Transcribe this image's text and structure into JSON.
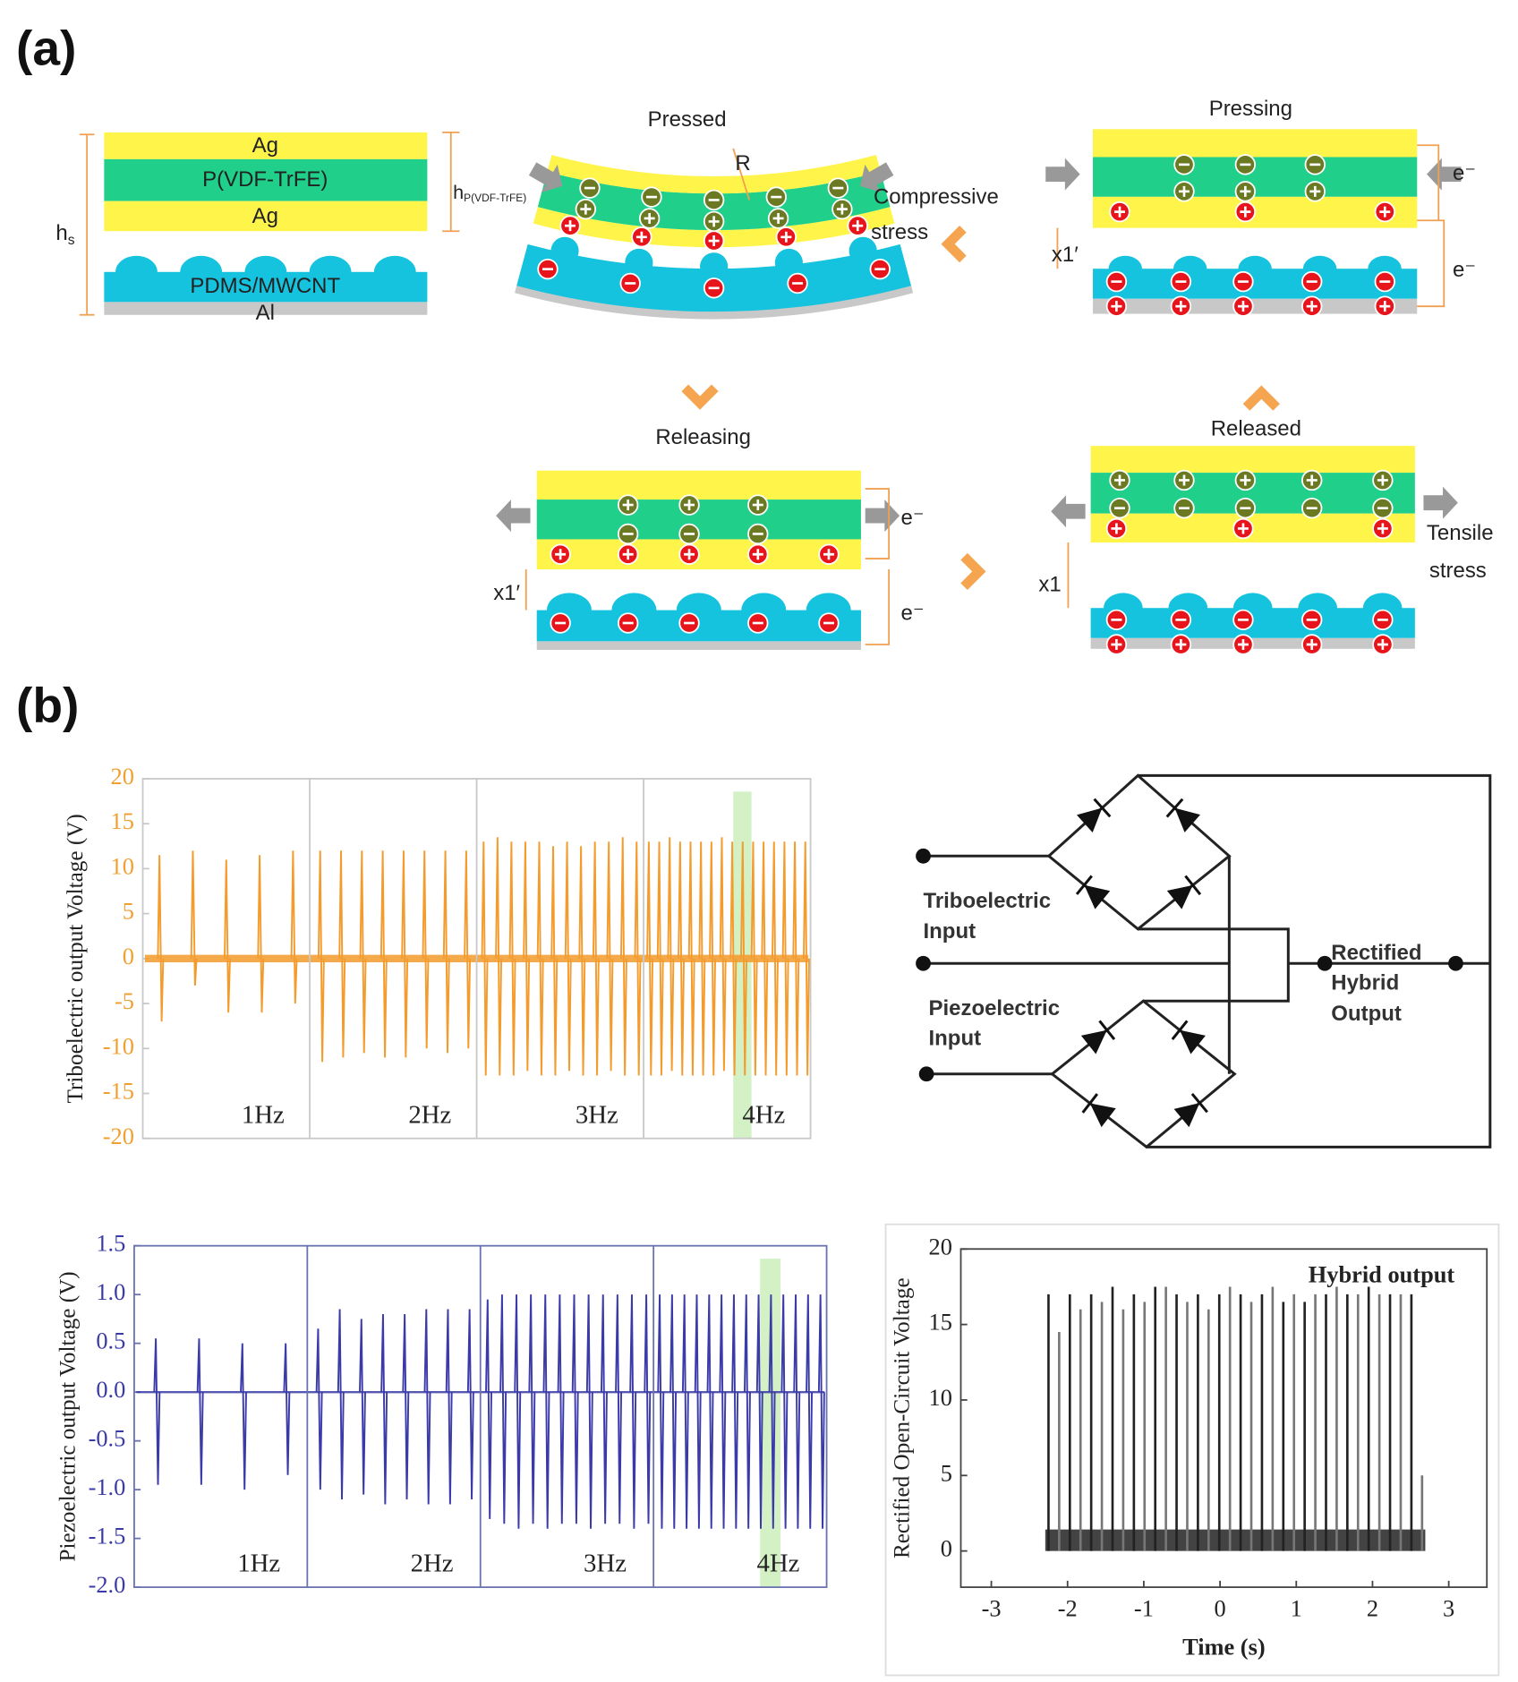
{
  "figure": {
    "panel_a": "(a)",
    "panel_b": "(b)"
  },
  "diagram": {
    "layers": {
      "ag_top": "Ag",
      "pvdf": "P(VDF-TrFE)",
      "ag_bottom": "Ag",
      "pdms": "PDMS/MWCNT",
      "al": "Al"
    },
    "h_s": {
      "base": "h",
      "sub": "s"
    },
    "h_p": {
      "base": "h",
      "sub": "P(VDF-TrFE)"
    },
    "pressed": {
      "title": "Pressed",
      "radius": "R",
      "stress": [
        "Compressive",
        "stress"
      ]
    },
    "pressing": {
      "title": "Pressing",
      "gap": "x1′",
      "electron_top": "e⁻",
      "electron_bottom": "e⁻"
    },
    "releasing": {
      "title": "Releasing",
      "gap": "x1′",
      "electron_top": "e⁻",
      "electron_bottom": "e⁻"
    },
    "released": {
      "title": "Released",
      "gap": "x1",
      "stress": [
        "Tensile",
        "stress"
      ]
    }
  },
  "circuit": {
    "tribo_input": [
      "Triboelectric",
      "Input"
    ],
    "piezo_input": [
      "Piezoelectric",
      "Input"
    ],
    "output": [
      "Rectified",
      "Hybrid",
      "Output"
    ]
  },
  "chart_data": [
    {
      "type": "line",
      "y_label": "Triboelectric output Voltage (V)",
      "color": "#f39b2c",
      "ylim": [
        -20,
        20
      ],
      "yticks": [
        -20,
        -15,
        -10,
        -5,
        0,
        5,
        10,
        15,
        20
      ],
      "sections": [
        {
          "label": "1Hz",
          "peaks": [
            11.5,
            12,
            11,
            11.5,
            12
          ],
          "troughs": [
            -7,
            -3,
            -6,
            -6,
            -5
          ]
        },
        {
          "label": "2Hz",
          "peaks": [
            12,
            12,
            12,
            12,
            12,
            12,
            12,
            12
          ],
          "troughs": [
            -11.5,
            -11,
            -10.5,
            -11,
            -11,
            -10,
            -10.5,
            -10
          ]
        },
        {
          "label": "3Hz",
          "peaks": [
            13,
            13.5,
            13,
            13,
            13,
            12.5,
            13,
            12.5,
            13,
            13,
            13.5,
            13
          ],
          "troughs": [
            -13,
            -13,
            -13,
            -12.5,
            -13,
            -13,
            -12.5,
            -13,
            -13,
            -12.5,
            -13,
            -13
          ]
        },
        {
          "label": "4Hz",
          "peaks": [
            13,
            13,
            13.5,
            13,
            13,
            13,
            13,
            13.5,
            13,
            13,
            13,
            13,
            13,
            13,
            13,
            13
          ],
          "troughs": [
            -13,
            -13,
            -12.5,
            -13,
            -13,
            -13,
            -13,
            -12.5,
            -13,
            -13,
            -13,
            -13,
            -13,
            -13,
            -13,
            -13
          ]
        }
      ]
    },
    {
      "type": "line",
      "y_label": "Piezoelectric output Voltage (V)",
      "color": "#3a3aa8",
      "ylim": [
        -2,
        1.5
      ],
      "yticks": [
        {
          "value": -2,
          "label": "-2.0"
        },
        -1.5,
        {
          "value": -1,
          "label": "-1.0"
        },
        -0.5,
        {
          "value": 0,
          "label": "0.0"
        },
        0.5,
        {
          "value": 1,
          "label": "1.0"
        },
        1.5
      ],
      "sections": [
        {
          "label": "1Hz",
          "peaks": [
            0.55,
            0.55,
            0.5,
            0.5
          ],
          "troughs": [
            -0.95,
            -0.95,
            -1.0,
            -0.85
          ]
        },
        {
          "label": "2Hz",
          "peaks": [
            0.65,
            0.85,
            0.75,
            0.8,
            0.8,
            0.85,
            0.85,
            0.85
          ],
          "troughs": [
            -1.0,
            -1.1,
            -1.05,
            -1.15,
            -1.1,
            -1.15,
            -1.15,
            -1.1
          ]
        },
        {
          "label": "3Hz",
          "peaks": [
            0.95,
            1.0,
            1.0,
            1.0,
            1.0,
            1.0,
            1.0,
            1.0,
            1.0,
            1.0,
            1.0,
            1.0
          ],
          "troughs": [
            -1.3,
            -1.35,
            -1.4,
            -1.35,
            -1.4,
            -1.35,
            -1.35,
            -1.4,
            -1.35,
            -1.35,
            -1.4,
            -1.35
          ]
        },
        {
          "label": "4Hz",
          "peaks": [
            1.0,
            1.0,
            1.0,
            1.0,
            1.0,
            1.0,
            1.0,
            1.0,
            1.0,
            1.0,
            1.0,
            1.0,
            1.0,
            1.0
          ],
          "troughs": [
            -1.4,
            -1.4,
            -1.4,
            -1.4,
            -1.4,
            -1.4,
            -1.4,
            -1.4,
            -1.4,
            -1.4,
            -1.4,
            -1.4,
            -1.4,
            -1.4
          ]
        }
      ]
    },
    {
      "type": "bar",
      "y_label": "Rectified Open-Circuit Voltage",
      "x_label": "Time (s)",
      "annotation": "Hybrid output",
      "color": "#222222",
      "xlim": [
        -3.4,
        3.5
      ],
      "xticks": [
        -3,
        -2,
        -1,
        0,
        1,
        2,
        3
      ],
      "ylim": [
        -2.4,
        20
      ],
      "yticks": [
        0,
        5,
        10,
        15,
        20
      ],
      "x": [
        -2.25,
        -2.11,
        -1.97,
        -1.83,
        -1.69,
        -1.55,
        -1.41,
        -1.27,
        -1.13,
        -0.99,
        -0.85,
        -0.71,
        -0.57,
        -0.43,
        -0.29,
        -0.15,
        -0.01,
        0.13,
        0.27,
        0.41,
        0.55,
        0.69,
        0.83,
        0.97,
        1.11,
        1.25,
        1.39,
        1.53,
        1.67,
        1.81,
        1.95,
        2.09,
        2.23,
        2.37,
        2.51,
        2.65
      ],
      "values": [
        17,
        14.5,
        17,
        16,
        17,
        16.5,
        17.5,
        16,
        17,
        16.5,
        17.5,
        17.5,
        17,
        16.5,
        17,
        16,
        17,
        17.5,
        17,
        16.5,
        17,
        17.5,
        16.5,
        17,
        16.5,
        17,
        17,
        17.5,
        17,
        17,
        17.5,
        17,
        17,
        17,
        17,
        5
      ]
    }
  ]
}
